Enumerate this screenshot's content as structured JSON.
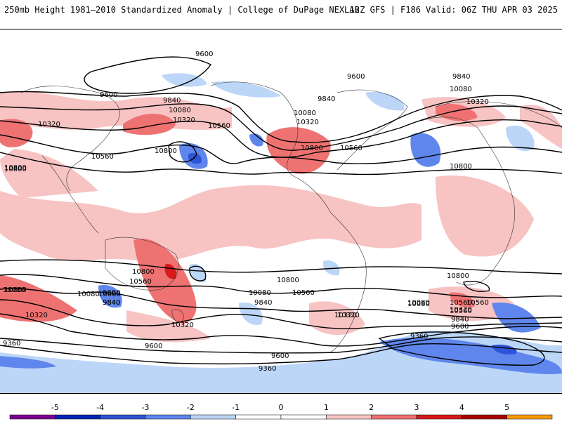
{
  "header": {
    "title_left": "250mb Height 1981–2010 Standardized Anomaly | College of DuPage NEXLAB",
    "title_right": "12Z GFS | F186 Valid: 06Z THU APR 03 2025"
  },
  "contour_labels": [
    "9600",
    "9600",
    "9600",
    "9840",
    "9840",
    "9840",
    "10080",
    "10080",
    "10320",
    "10320",
    "10320",
    "10560",
    "10800",
    "10800",
    "10560",
    "10080",
    "10320",
    "10800",
    "10560",
    "10800",
    "9600",
    "9840",
    "10080",
    "10320",
    "10560",
    "10800",
    "10080",
    "10320",
    "10560",
    "10800",
    "10560",
    "10080",
    "10320",
    "10800",
    "10080",
    "10320",
    "10560",
    "9840",
    "9600",
    "10080",
    "9840",
    "9600",
    "9360",
    "9360",
    "9360",
    "9600",
    "9840",
    "10800",
    "10560",
    "10320",
    "10080",
    "10800"
  ],
  "colorbar": {
    "ticks": [
      "-5",
      "-4",
      "-3",
      "-2",
      "-1",
      "0",
      "1",
      "2",
      "3",
      "4",
      "5"
    ],
    "colors": [
      "#7b008f",
      "#0025b5",
      "#2f55d6",
      "#5f86ec",
      "#bcd6f7",
      "#ffffff",
      "#ffffff",
      "#f7c3c3",
      "#ef7272",
      "#d91a1a",
      "#a80000",
      "#f59a00"
    ]
  }
}
